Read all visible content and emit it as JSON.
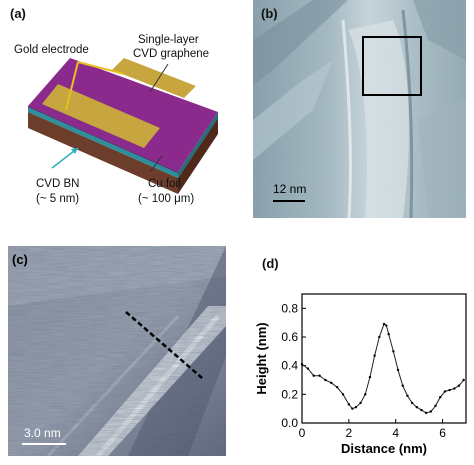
{
  "panels": {
    "a": {
      "label": "(a)",
      "annotations": {
        "gold_electrode": "Gold electrode",
        "graphene_line1": "Single-layer",
        "graphene_line2": "CVD graphene",
        "bn_line1": "CVD BN",
        "bn_line2": "(~ 5 nm)",
        "cu_line1": "Cu foil",
        "cu_line2": "(~ 100 μm)"
      },
      "colors": {
        "graphene_top": "#8a2a8c",
        "gold": "#c7a640",
        "bn_layer": "#2e8f9a",
        "cu_layer": "#6b3d2a",
        "arrow_yellow": "#e8c020"
      }
    },
    "b": {
      "label": "(b)",
      "scale_bar": "12 nm"
    },
    "c": {
      "label": "(c)",
      "scale_bar": "3.0 nm"
    },
    "d": {
      "label": "(d)"
    }
  },
  "chart_data": {
    "type": "line",
    "title": "",
    "xlabel": "Distance (nm)",
    "ylabel": "Height (nm)",
    "xlim": [
      0,
      7
    ],
    "ylim": [
      0,
      0.9
    ],
    "x_ticks": [
      "0",
      "2",
      "4",
      "6"
    ],
    "y_ticks": [
      "0.0",
      "0.2",
      "0.4",
      "0.6",
      "0.8"
    ],
    "series": [
      {
        "x": [
          0.0,
          0.25,
          0.5,
          0.75,
          1.0,
          1.25,
          1.5,
          1.75,
          2.0,
          2.15,
          2.3,
          2.5,
          2.7,
          2.9,
          3.1,
          3.3,
          3.5,
          3.6,
          3.7,
          3.9,
          4.1,
          4.3,
          4.5,
          4.7,
          4.9,
          5.1,
          5.3,
          5.5,
          5.7,
          5.9,
          6.1,
          6.3,
          6.5,
          6.7,
          6.9
        ],
        "y": [
          0.41,
          0.38,
          0.33,
          0.33,
          0.3,
          0.28,
          0.25,
          0.2,
          0.13,
          0.1,
          0.11,
          0.14,
          0.2,
          0.32,
          0.47,
          0.6,
          0.69,
          0.68,
          0.62,
          0.5,
          0.37,
          0.26,
          0.19,
          0.14,
          0.11,
          0.09,
          0.07,
          0.08,
          0.12,
          0.18,
          0.22,
          0.23,
          0.24,
          0.26,
          0.3
        ]
      }
    ],
    "grid": false
  }
}
